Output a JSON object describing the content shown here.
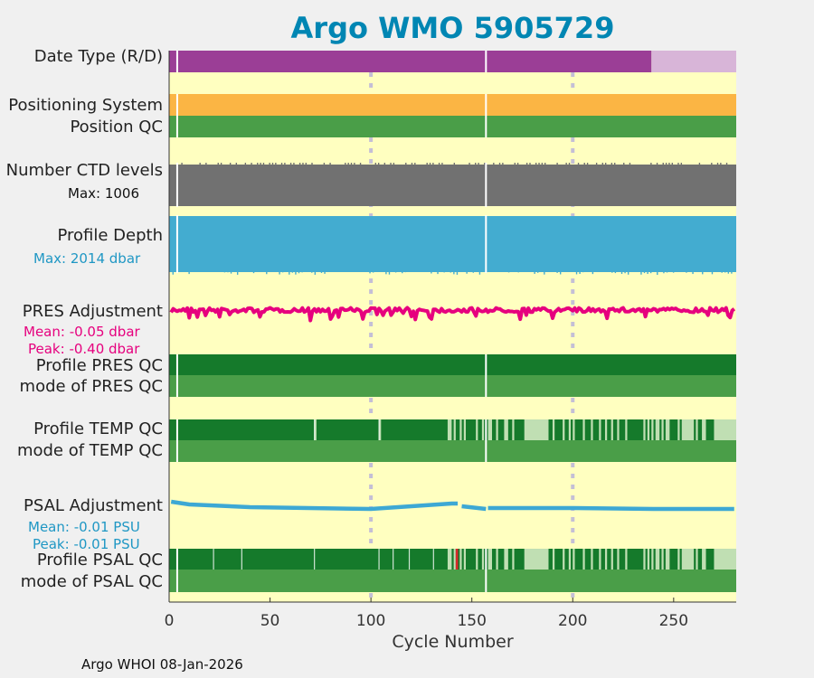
{
  "chart_data": {
    "type": "timeline",
    "title": "Argo WMO 5905729",
    "xlabel": "Cycle Number",
    "xlim": [
      0,
      281
    ],
    "xticks": [
      0,
      50,
      100,
      150,
      200,
      250
    ],
    "xtick_labels": [
      "0",
      "50",
      "100",
      "150",
      "200",
      "250"
    ],
    "gridlines_at": [
      100,
      200
    ],
    "gaps_at": [
      4,
      157
    ],
    "rows": {
      "date_type": {
        "label": "Date Type (R/D)",
        "segments": [
          {
            "from": 0,
            "to": 239,
            "value": "R"
          },
          {
            "from": 239,
            "to": 281,
            "value": "D"
          }
        ]
      },
      "positioning_system": {
        "label": "Positioning System",
        "segments": [
          {
            "from": 0,
            "to": 281,
            "value": "GPS"
          }
        ]
      },
      "position_qc": {
        "label": "Position QC",
        "segments": [
          {
            "from": 0,
            "to": 281,
            "value": "1"
          }
        ]
      },
      "ctd_levels": {
        "label": "Number CTD levels",
        "max_label": "Max: 1006",
        "max": 1006,
        "typical": 970
      },
      "profile_depth": {
        "label": "Profile Depth",
        "max_label": "Max: 2014 dbar",
        "max": 2014,
        "typical": 2000
      },
      "pres_adjustment": {
        "label": "PRES Adjustment",
        "mean_label": "Mean: -0.05 dbar",
        "peak_label": "Peak: -0.40 dbar",
        "mean": -0.05,
        "peak": -0.4
      },
      "profile_pres_qc": {
        "label": "Profile PRES QC",
        "segments": [
          {
            "from": 0,
            "to": 281,
            "value": "A"
          }
        ]
      },
      "mode_pres_qc": {
        "label": "mode of PRES QC",
        "segments": [
          {
            "from": 0,
            "to": 281,
            "value": "1"
          }
        ]
      },
      "profile_temp_qc": {
        "label": "Profile TEMP QC",
        "light_ranges": [
          [
            72,
            73
          ],
          [
            104,
            105
          ],
          [
            138,
            140
          ],
          [
            141,
            142
          ],
          [
            144,
            145
          ],
          [
            146,
            147
          ],
          [
            152,
            153
          ],
          [
            155,
            156
          ],
          [
            158,
            160
          ],
          [
            162,
            163
          ],
          [
            166,
            168
          ],
          [
            170,
            171
          ],
          [
            176,
            188
          ],
          [
            190,
            191
          ],
          [
            195,
            196
          ],
          [
            198,
            199
          ],
          [
            200,
            201
          ],
          [
            205,
            206
          ],
          [
            209,
            210
          ],
          [
            213,
            214
          ],
          [
            216,
            217
          ],
          [
            219,
            220
          ],
          [
            222,
            223
          ],
          [
            226,
            227
          ],
          [
            235,
            236
          ],
          [
            237,
            238
          ],
          [
            239,
            240
          ],
          [
            241,
            242
          ],
          [
            242,
            243
          ],
          [
            244,
            245
          ],
          [
            246,
            248
          ],
          [
            252,
            253
          ],
          [
            254,
            260
          ],
          [
            261,
            262
          ],
          [
            264,
            266
          ],
          [
            270,
            281
          ]
        ]
      },
      "mode_temp_qc": {
        "label": "mode of TEMP QC",
        "segments": [
          {
            "from": 0,
            "to": 281,
            "value": "1"
          }
        ]
      },
      "psal_adjustment": {
        "label": "PSAL Adjustment",
        "mean_label": "Mean: -0.01 PSU",
        "peak_label": "Peak: -0.01 PSU",
        "mean": -0.01,
        "peak": -0.01
      },
      "profile_psal_qc": {
        "label": "Profile PSAL QC",
        "light_ranges": [
          [
            138,
            140
          ],
          [
            141,
            142
          ],
          [
            144,
            145
          ],
          [
            146,
            147
          ],
          [
            152,
            153
          ],
          [
            155,
            156
          ],
          [
            158,
            160
          ],
          [
            162,
            163
          ],
          [
            166,
            168
          ],
          [
            170,
            171
          ],
          [
            176,
            188
          ],
          [
            190,
            191
          ],
          [
            195,
            196
          ],
          [
            198,
            199
          ],
          [
            200,
            201
          ],
          [
            205,
            206
          ],
          [
            209,
            210
          ],
          [
            213,
            214
          ],
          [
            216,
            217
          ],
          [
            219,
            220
          ],
          [
            222,
            223
          ],
          [
            226,
            227
          ],
          [
            235,
            236
          ],
          [
            237,
            238
          ],
          [
            239,
            240
          ],
          [
            241,
            242
          ],
          [
            242,
            243
          ],
          [
            244,
            245
          ],
          [
            246,
            248
          ],
          [
            252,
            253
          ],
          [
            254,
            260
          ],
          [
            261,
            262
          ],
          [
            264,
            266
          ],
          [
            270,
            281
          ]
        ],
        "bad_at": [
          142
        ]
      },
      "mode_psal_qc": {
        "label": "mode of PSAL QC",
        "segments": [
          {
            "from": 0,
            "to": 281,
            "value": "1"
          }
        ]
      }
    },
    "colors": {
      "background": "#ffffc0",
      "real_time": "#9b3e96",
      "delayed": "#d8b5d8",
      "positioning": "#fbb544",
      "qc_good": "#4a9e48",
      "profile_qc_a": "#157a2b",
      "profile_qc_light": "#c0dfb3",
      "ctd": "#717171",
      "depth": "#43acd0",
      "pres_adj": "#e6007e",
      "psal_adj": "#3da8d4",
      "psal_bad": "#d62a2a",
      "grid": "#c4bfd6",
      "title": "#0086b3"
    }
  },
  "footer": "Argo WHOI 08-Jan-2026"
}
